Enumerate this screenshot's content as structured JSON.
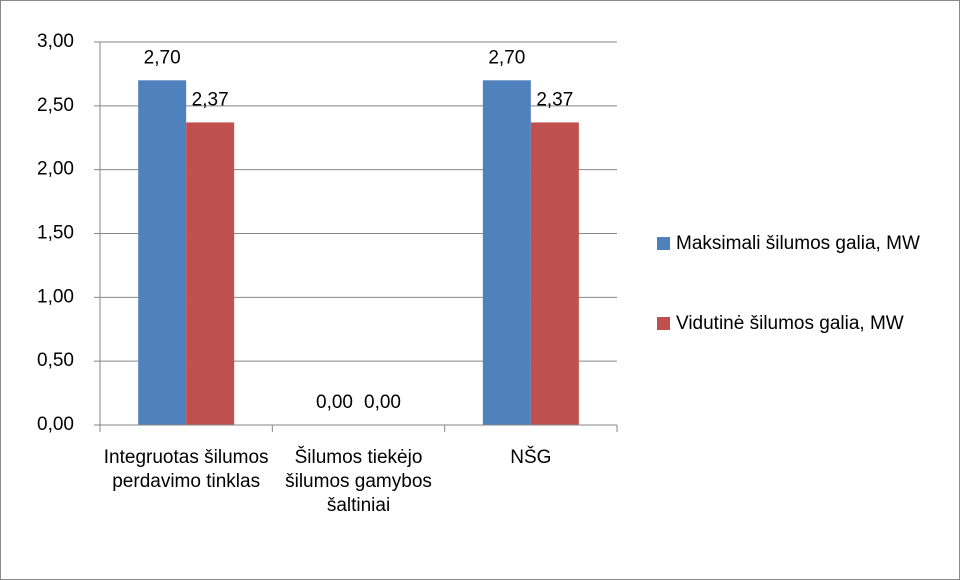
{
  "chart_data": {
    "type": "bar",
    "categories": [
      "Integruotas šilumos perdavimo tinklas",
      "Šilumos tiekėjo šilumos gamybos šaltiniai",
      "NŠG"
    ],
    "series": [
      {
        "name": "Maksimali šilumos galia, MW",
        "color": "#4f81bd",
        "values": [
          2.7,
          0,
          2.7
        ],
        "value_labels": [
          "2,70",
          "0,00",
          "2,70"
        ]
      },
      {
        "name": "Vidutinė šilumos galia, MW",
        "color": "#c0504d",
        "values": [
          2.37,
          0,
          2.37
        ],
        "value_labels": [
          "2,37",
          "0,00",
          "2,37"
        ]
      }
    ],
    "ylim": [
      0,
      3
    ],
    "yticks": [
      {
        "value": 0,
        "label": "0,00"
      },
      {
        "value": 0.5,
        "label": "0,50"
      },
      {
        "value": 1,
        "label": "1,00"
      },
      {
        "value": 1.5,
        "label": "1,50"
      },
      {
        "value": 2,
        "label": "2,00"
      },
      {
        "value": 2.5,
        "label": "2,50"
      },
      {
        "value": 3,
        "label": "3,00"
      }
    ],
    "grid": true,
    "legend": "right"
  }
}
